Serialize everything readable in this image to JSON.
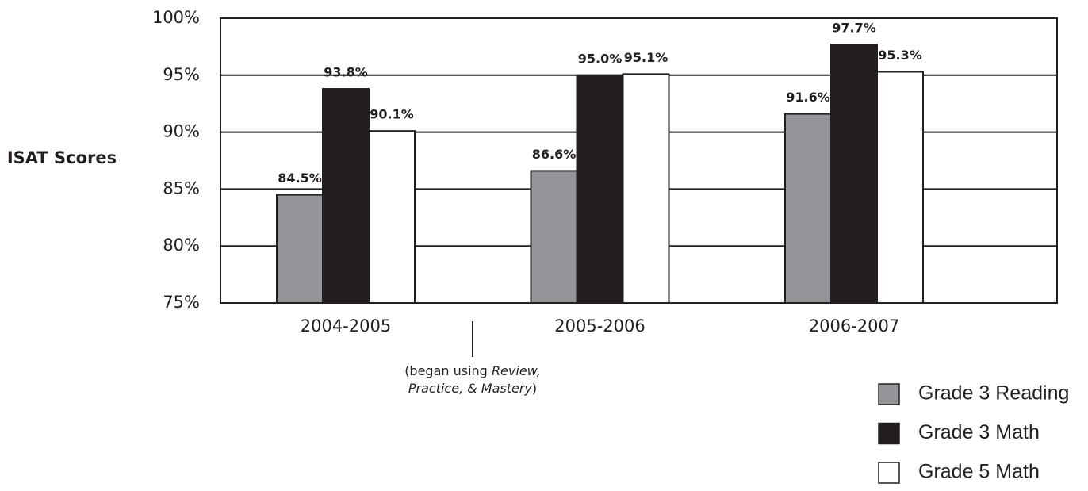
{
  "chart_data": {
    "type": "bar",
    "y_axis_label": "ISAT Scores",
    "categories": [
      "2004-2005",
      "2005-2006",
      "2006-2007"
    ],
    "series": [
      {
        "name": "Grade 3 Reading",
        "color": "#939598",
        "values": [
          84.5,
          86.6,
          91.6
        ],
        "value_labels": [
          "84.5%",
          "86.6%",
          "91.6%"
        ]
      },
      {
        "name": "Grade 3 Math",
        "color": "#231f20",
        "values": [
          93.8,
          95.0,
          97.7
        ],
        "value_labels": [
          "93.8%",
          "95.0%",
          "97.7%"
        ]
      },
      {
        "name": "Grade 5 Math",
        "color": "#ffffff",
        "values": [
          90.1,
          95.1,
          95.3
        ],
        "value_labels": [
          "90.1%",
          "95.1%",
          "95.3%"
        ]
      }
    ],
    "ylim": [
      75,
      100
    ],
    "yticks": [
      {
        "value": 75,
        "label": "75%"
      },
      {
        "value": 80,
        "label": "80%"
      },
      {
        "value": 85,
        "label": "85%"
      },
      {
        "value": 90,
        "label": "90%"
      },
      {
        "value": 95,
        "label": "95%"
      },
      {
        "value": 100,
        "label": "100%"
      }
    ],
    "grid": true,
    "legend": "bottom-right",
    "annotation": [
      "(began using",
      "Review,",
      "Practice, & Mastery",
      ")"
    ]
  }
}
